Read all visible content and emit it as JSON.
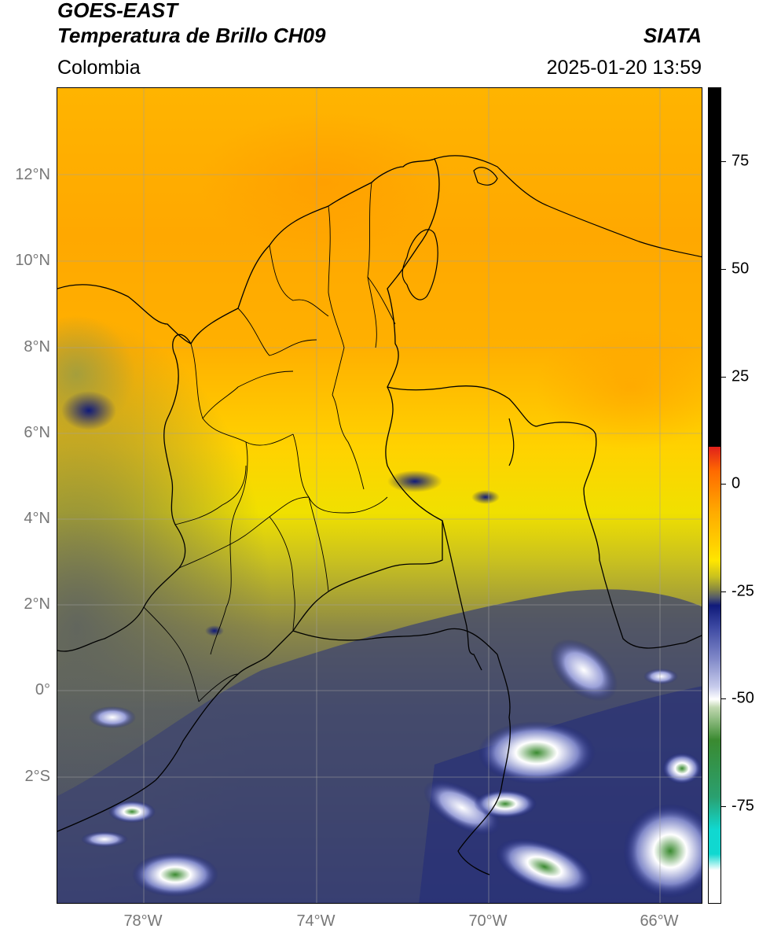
{
  "header": {
    "satellite": "GOES-EAST",
    "product": "Temperatura de Brillo CH09",
    "brand": "SIATA",
    "region": "Colombia",
    "timestamp": "2025-01-20 13:59"
  },
  "axes": {
    "lat_ticks": [
      "12°N",
      "10°N",
      "8°N",
      "6°N",
      "4°N",
      "2°N",
      "0°",
      "2°S"
    ],
    "lon_ticks": [
      "78°W",
      "74°W",
      "70°W",
      "66°W"
    ]
  },
  "colorbar": {
    "labels": [
      "75",
      "50",
      "25",
      "0",
      "-25",
      "-50",
      "-75"
    ],
    "colors": {
      "black": "#000000",
      "red": "#e0201b",
      "orange": "#ffaa00",
      "yellow": "#ffe600",
      "olive": "#9a9a3a",
      "gray": "#545a6a",
      "navy": "#101a7a",
      "white": "#ffffff",
      "green": "#3a8a30",
      "cyan": "#10d8d0"
    }
  }
}
